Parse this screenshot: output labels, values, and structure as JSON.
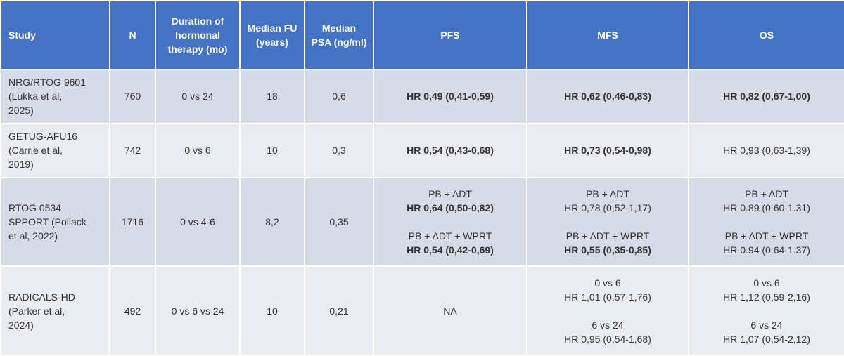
{
  "table": {
    "header": [
      "Study",
      "N",
      "Duration of hormonal therapy (mo)",
      "Median FU (years)",
      "Median PSA (ng/ml)",
      "PFS",
      "MFS",
      "OS"
    ],
    "rows": [
      [
        [
          [
            {
              "text": "NRG/RTOG 9601",
              "bold": false
            },
            {
              "text": "(Lukka et al,",
              "bold": false
            },
            {
              "text": "2025)",
              "bold": false
            }
          ]
        ],
        [
          [
            {
              "text": "760",
              "bold": false
            }
          ]
        ],
        [
          [
            {
              "text": "0 vs 24",
              "bold": false
            }
          ]
        ],
        [
          [
            {
              "text": "18",
              "bold": false
            }
          ]
        ],
        [
          [
            {
              "text": "0,6",
              "bold": false
            }
          ]
        ],
        [
          [
            {
              "text": "HR 0,49 (0,41-0,59)",
              "bold": true
            }
          ]
        ],
        [
          [
            {
              "text": "HR 0,62 (0,46-0,83)",
              "bold": true
            }
          ]
        ],
        [
          [
            {
              "text": "HR 0,82 (0,67-1,00)",
              "bold": true
            }
          ]
        ]
      ],
      [
        [
          [
            {
              "text": "GETUG-AFU16",
              "bold": false
            },
            {
              "text": "(Carrie et al,",
              "bold": false
            },
            {
              "text": "2019)",
              "bold": false
            }
          ]
        ],
        [
          [
            {
              "text": "742",
              "bold": false
            }
          ]
        ],
        [
          [
            {
              "text": "0 vs 6",
              "bold": false
            }
          ]
        ],
        [
          [
            {
              "text": "10",
              "bold": false
            }
          ]
        ],
        [
          [
            {
              "text": "0,3",
              "bold": false
            }
          ]
        ],
        [
          [
            {
              "text": "HR 0,54 (0,43-0,68)",
              "bold": true
            }
          ]
        ],
        [
          [
            {
              "text": "HR 0,73 (0,54-0,98)",
              "bold": true
            }
          ]
        ],
        [
          [
            {
              "text": "HR 0,93 (0,63-1,39)",
              "bold": false
            }
          ]
        ]
      ],
      [
        [
          [
            {
              "text": "RTOG 0534",
              "bold": false
            },
            {
              "text": "SPPORT (Pollack",
              "bold": false
            },
            {
              "text": "et al, 2022)",
              "bold": false
            }
          ]
        ],
        [
          [
            {
              "text": "1716",
              "bold": false
            }
          ]
        ],
        [
          [
            {
              "text": "0 vs 4-6",
              "bold": false
            }
          ]
        ],
        [
          [
            {
              "text": "8,2",
              "bold": false
            }
          ]
        ],
        [
          [
            {
              "text": "0,35",
              "bold": false
            }
          ]
        ],
        [
          [
            {
              "text": "PB + ADT",
              "bold": false
            },
            {
              "text": "HR 0,64 (0,50-0,82)",
              "bold": true
            }
          ],
          [
            {
              "text": "PB + ADT + WPRT",
              "bold": false
            },
            {
              "text": "HR 0,54 (0,42-0,69)",
              "bold": true
            }
          ]
        ],
        [
          [
            {
              "text": "PB + ADT",
              "bold": false
            },
            {
              "text": "HR 0,78 (0,52-1,17)",
              "bold": false
            }
          ],
          [
            {
              "text": "PB + ADT + WPRT",
              "bold": false
            },
            {
              "text": "HR 0,55 (0,35-0,85)",
              "bold": true
            }
          ]
        ],
        [
          [
            {
              "text": "PB + ADT",
              "bold": false
            },
            {
              "text": "HR 0.89 (0.60-1.31)",
              "bold": false
            }
          ],
          [
            {
              "text": "PB + ADT + WPRT",
              "bold": false
            },
            {
              "text": "HR 0.94 (0.64-1.37)",
              "bold": false
            }
          ]
        ]
      ],
      [
        [
          [
            {
              "text": "RADICALS-HD",
              "bold": false
            },
            {
              "text": "(Parker et al,",
              "bold": false
            },
            {
              "text": "2024)",
              "bold": false
            }
          ]
        ],
        [
          [
            {
              "text": "492",
              "bold": false
            }
          ]
        ],
        [
          [
            {
              "text": "0 vs 6 vs 24",
              "bold": false
            }
          ]
        ],
        [
          [
            {
              "text": "10",
              "bold": false
            }
          ]
        ],
        [
          [
            {
              "text": "0,21",
              "bold": false
            }
          ]
        ],
        [
          [
            {
              "text": "NA",
              "bold": false
            }
          ]
        ],
        [
          [
            {
              "text": "0 vs 6",
              "bold": false
            },
            {
              "text": "HR 1,01 (0,57-1,76)",
              "bold": false
            }
          ],
          [
            {
              "text": "6 vs 24",
              "bold": false
            },
            {
              "text": "HR 0,95 (0,54-1,68)",
              "bold": false
            }
          ]
        ],
        [
          [
            {
              "text": "0 vs 6",
              "bold": false
            },
            {
              "text": "HR 1,12 (0,59-2,16)",
              "bold": false
            }
          ],
          [
            {
              "text": "6 vs 24",
              "bold": false
            },
            {
              "text": "HR 1,07 (0,54-2,12)",
              "bold": false
            }
          ]
        ]
      ]
    ]
  }
}
